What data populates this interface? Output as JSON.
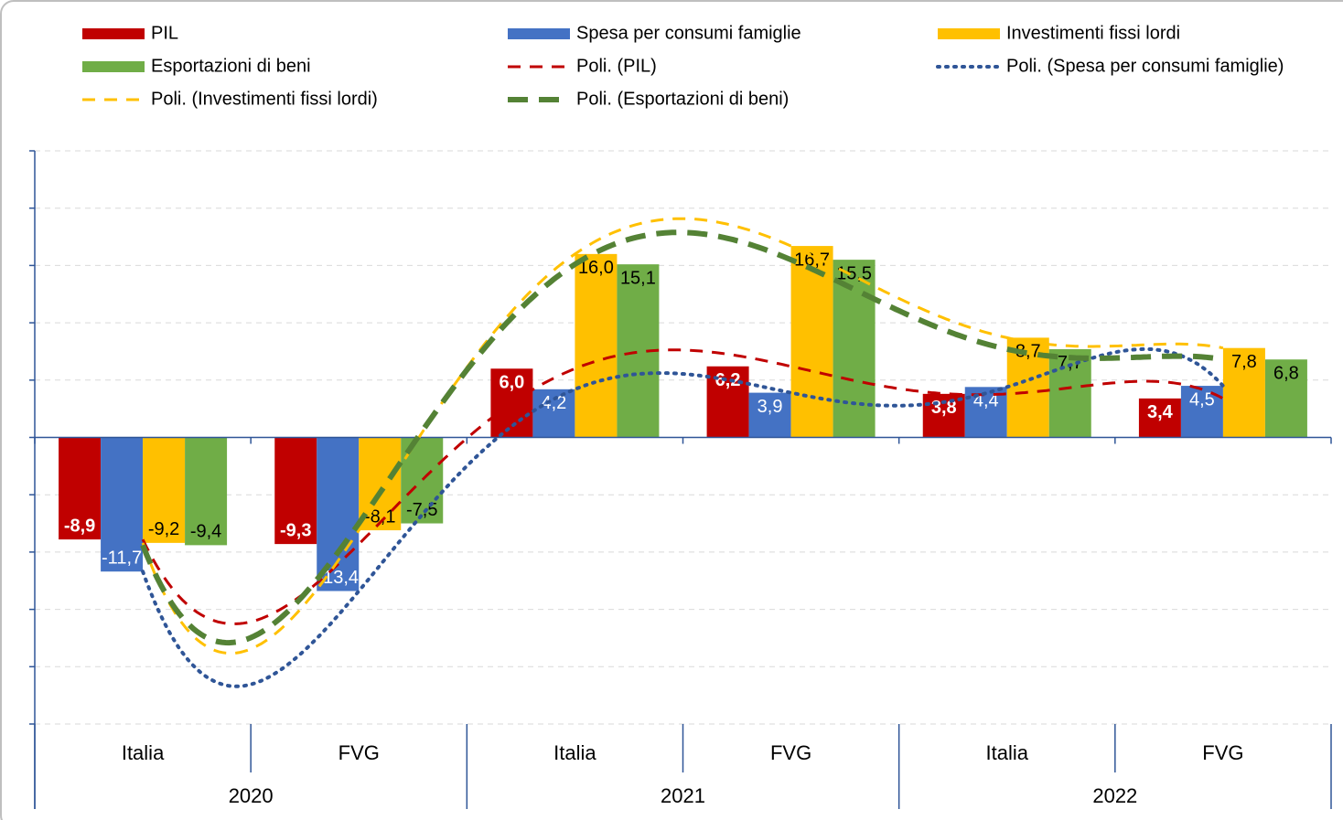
{
  "chart_data": {
    "type": "bar",
    "categories": [
      "Italia",
      "FVG",
      "Italia",
      "FVG",
      "Italia",
      "FVG"
    ],
    "groups": [
      "2020",
      "2021",
      "2022"
    ],
    "ylim": [
      -25,
      25
    ],
    "yticks": [
      -25,
      -20,
      -15,
      -10,
      -5,
      0,
      5,
      10,
      15,
      20,
      25
    ],
    "grid": true,
    "trendline": {
      "type": "polynomial",
      "order": 5
    },
    "series": [
      {
        "name": "PIL",
        "color": "#c00000",
        "label_color": "#ffffff",
        "label_bold": true,
        "values": [
          -8.9,
          -9.3,
          6.0,
          6.2,
          3.8,
          3.4
        ],
        "value_labels": [
          "-8,9",
          "-9,3",
          "6,0",
          "6,2",
          "3,8",
          "3,4"
        ],
        "trend_name": "Poli. (PIL)",
        "trend_color": "#c00000",
        "trend_dash": "14 10",
        "trend_width": 3
      },
      {
        "name": "Spesa per consumi famiglie",
        "color": "#4472c4",
        "label_color": "#ffffff",
        "label_bold": false,
        "values": [
          -11.7,
          -13.4,
          4.2,
          3.9,
          4.4,
          4.5
        ],
        "value_labels": [
          "-11,7",
          "-13,4",
          "4,2",
          "3,9",
          "4,4",
          "4,5"
        ],
        "trend_name": "Poli. (Spesa per consumi famiglie)",
        "trend_color": "#2f5597",
        "trend_dash": "2 7",
        "trend_width": 4
      },
      {
        "name": "Investimenti fissi lordi",
        "color": "#ffc000",
        "label_color": "#000000",
        "label_bold": false,
        "values": [
          -9.2,
          -8.1,
          16.0,
          16.7,
          8.7,
          7.8
        ],
        "value_labels": [
          "-9,2",
          "-8,1",
          "16,0",
          "16,7",
          "8,7",
          "7,8"
        ],
        "trend_name": "Poli. (Investimenti fissi lordi)",
        "trend_color": "#ffc000",
        "trend_dash": "14 10",
        "trend_width": 3
      },
      {
        "name": "Esportazioni di beni",
        "color": "#70ad47",
        "label_color": "#000000",
        "label_bold": false,
        "values": [
          -9.4,
          -7.5,
          15.1,
          15.5,
          7.7,
          6.8
        ],
        "value_labels": [
          "-9,4",
          "-7,5",
          "15,1",
          "15,5",
          "7,7",
          "6,8"
        ],
        "trend_name": "Poli. (Esportazioni di beni)",
        "trend_color": "#548235",
        "trend_dash": "22 12",
        "trend_width": 6
      }
    ]
  }
}
